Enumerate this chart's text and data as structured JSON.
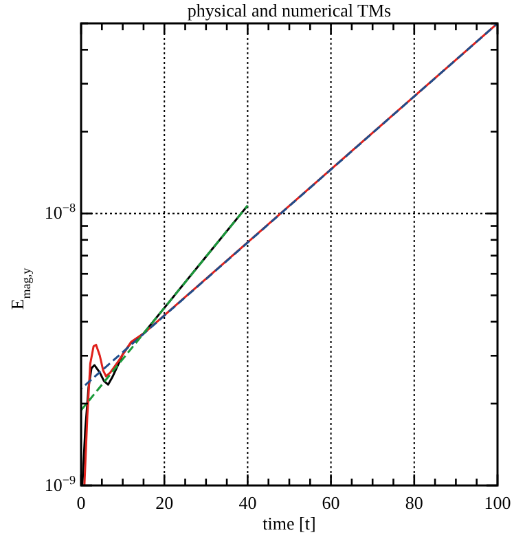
{
  "chart_data": {
    "type": "line",
    "title": "physical and numerical TMs",
    "xlabel": "time [t]",
    "ylabel": "E$_{mag,y}$",
    "log": "y",
    "grid": true,
    "xlim": [
      0,
      100
    ],
    "ylim": [
      1e-09,
      5e-08
    ],
    "xticks": [
      0,
      {
        "value": 5,
        "label": null
      },
      {
        "value": 10,
        "label": null
      },
      {
        "value": 15,
        "label": null
      },
      20,
      {
        "value": 25,
        "label": null
      },
      {
        "value": 30,
        "label": null
      },
      {
        "value": 35,
        "label": null
      },
      40,
      {
        "value": 45,
        "label": null
      },
      {
        "value": 50,
        "label": null
      },
      {
        "value": 55,
        "label": null
      },
      60,
      {
        "value": 65,
        "label": null
      },
      {
        "value": 70,
        "label": null
      },
      {
        "value": 75,
        "label": null
      },
      80,
      {
        "value": 85,
        "label": null
      },
      {
        "value": 90,
        "label": null
      },
      {
        "value": 95,
        "label": null
      },
      100
    ],
    "yticks": [
      {
        "value": 1e-09,
        "label": "10$^{−9}$"
      },
      {
        "value": 2e-09,
        "label": null
      },
      {
        "value": 3e-09,
        "label": null
      },
      {
        "value": 4e-09,
        "label": null
      },
      {
        "value": 5e-09,
        "label": null
      },
      {
        "value": 6e-09,
        "label": null
      },
      {
        "value": 7e-09,
        "label": null
      },
      {
        "value": 8e-09,
        "label": null
      },
      {
        "value": 9e-09,
        "label": null
      },
      {
        "value": 1e-08,
        "label": "10$^{−8}$"
      },
      {
        "value": 2e-08,
        "label": null
      },
      {
        "value": 3e-08,
        "label": null
      },
      {
        "value": 4e-08,
        "label": null
      },
      {
        "value": 5e-08,
        "label": null
      }
    ],
    "series": [
      {
        "color": "#000000",
        "line_style": "solid",
        "x": [
          0.3,
          1,
          1.8,
          2.5,
          3.2,
          4.5,
          5.5,
          6.5,
          7.5,
          9,
          10,
          12,
          15,
          20,
          30,
          40
        ],
        "values": [
          1e-09,
          1.6e-09,
          2.3e-09,
          2.7e-09,
          2.77e-09,
          2.6e-09,
          2.42e-09,
          2.35e-09,
          2.5e-09,
          2.8e-09,
          3.04e-09,
          3.35e-09,
          3.62e-09,
          4.5e-09,
          6.94e-09,
          1.07e-08
        ]
      },
      {
        "color": "#e0201b",
        "line_style": "solid",
        "x": [
          0.8,
          1.5,
          2.2,
          3,
          3.6,
          4.5,
          5.3,
          6,
          7,
          9,
          12,
          15,
          40,
          70,
          100
        ],
        "values": [
          1e-09,
          1.8e-09,
          2.8e-09,
          3.25e-09,
          3.29e-09,
          3e-09,
          2.65e-09,
          2.52e-09,
          2.6e-09,
          2.87e-09,
          3.37e-09,
          3.62e-09,
          7.83e-09,
          1.98e-08,
          5e-08
        ]
      },
      {
        "color": "#1f4e8c",
        "line_style": "dashed",
        "x": [
          0,
          100
        ],
        "values": [
          2.27e-09,
          5e-08
        ]
      },
      {
        "color": "#1a9a3a",
        "line_style": "dashed",
        "x": [
          0,
          40
        ],
        "values": [
          1.89e-09,
          1.07e-08
        ]
      }
    ]
  }
}
